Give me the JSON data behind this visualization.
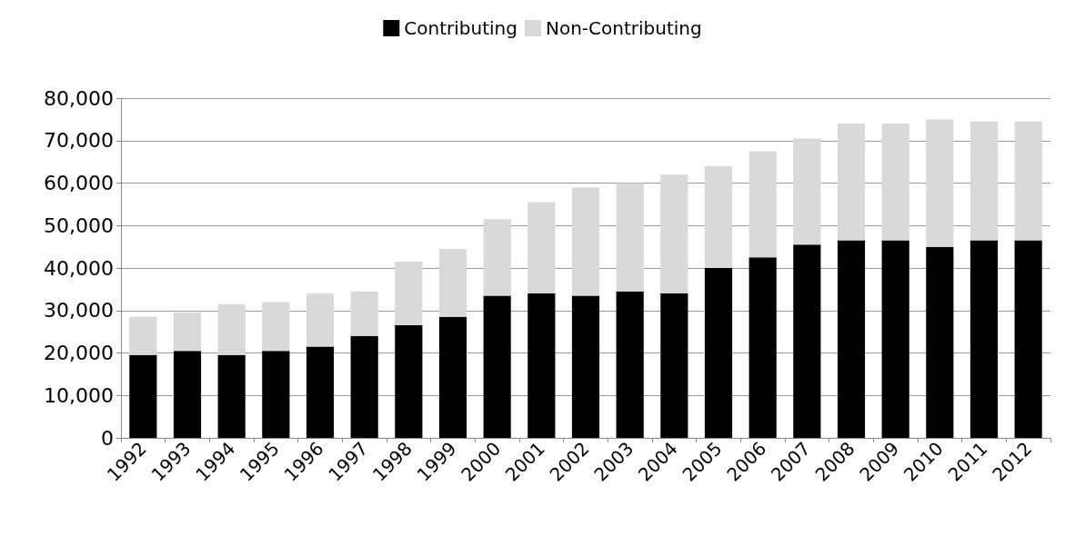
{
  "chart_data": {
    "type": "bar",
    "stacked": true,
    "categories": [
      "1992",
      "1993",
      "1994",
      "1995",
      "1996",
      "1997",
      "1998",
      "1999",
      "2000",
      "2001",
      "2002",
      "2003",
      "2004",
      "2005",
      "2006",
      "2007",
      "2008",
      "2009",
      "2010",
      "2011",
      "2012"
    ],
    "series": [
      {
        "name": "Contributing",
        "color": "#000000",
        "values": [
          19500,
          20500,
          19500,
          20500,
          21500,
          24000,
          26500,
          28500,
          33500,
          34000,
          33500,
          34500,
          34000,
          40000,
          42500,
          45500,
          46500,
          46500,
          45000,
          46500,
          46500
        ]
      },
      {
        "name": "Non-Contributing",
        "color": "#d9d9d9",
        "values": [
          9000,
          9000,
          12000,
          11500,
          12500,
          10500,
          15000,
          16000,
          18000,
          21500,
          25500,
          25500,
          28000,
          24000,
          25000,
          25000,
          27500,
          27500,
          30000,
          28000,
          28000
        ]
      }
    ],
    "ylim": [
      0,
      80000
    ],
    "yticks": [
      {
        "value": 0,
        "label": "0"
      },
      {
        "value": 10000,
        "label": "10,000"
      },
      {
        "value": 20000,
        "label": "20,000"
      },
      {
        "value": 30000,
        "label": "30,000"
      },
      {
        "value": 40000,
        "label": "40,000"
      },
      {
        "value": 50000,
        "label": "50,000"
      },
      {
        "value": 60000,
        "label": "60,000"
      },
      {
        "value": 70000,
        "label": "70,000"
      },
      {
        "value": 80000,
        "label": "80,000"
      }
    ],
    "grid": "y",
    "legend": "top"
  }
}
